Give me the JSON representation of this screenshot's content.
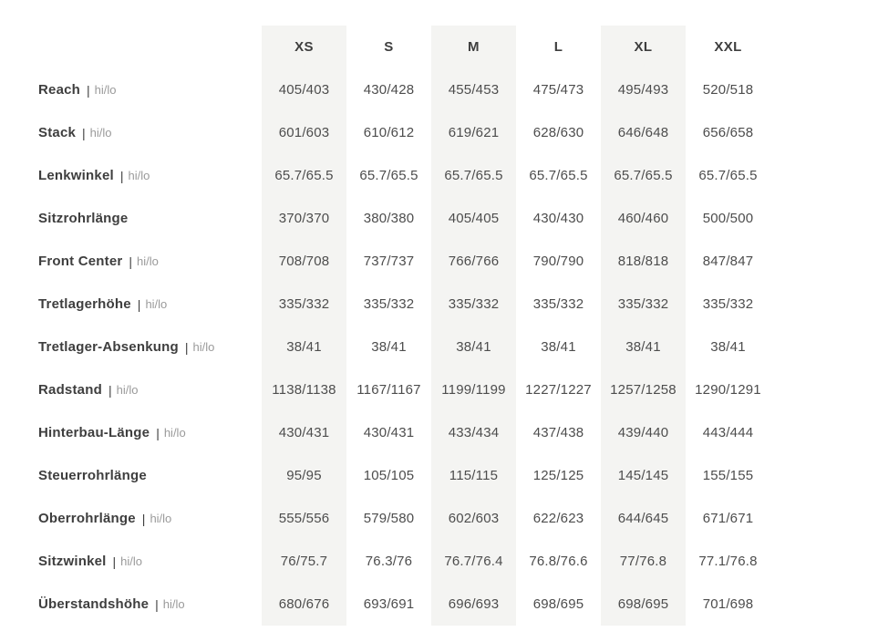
{
  "table": {
    "separator": "|",
    "columns": [
      "XS",
      "S",
      "M",
      "L",
      "XL",
      "XXL"
    ],
    "shaded_columns": [
      "XS",
      "M",
      "XL"
    ],
    "colors": {
      "band": "#f4f4f2",
      "label": "#3e3e3e",
      "suffix": "#9a9a9a",
      "value": "#4d4d4d",
      "background": "#ffffff"
    },
    "rows": [
      {
        "label": "Reach",
        "suffix": "hi/lo",
        "values": [
          "405/403",
          "430/428",
          "455/453",
          "475/473",
          "495/493",
          "520/518"
        ]
      },
      {
        "label": "Stack",
        "suffix": "hi/lo",
        "values": [
          "601/603",
          "610/612",
          "619/621",
          "628/630",
          "646/648",
          "656/658"
        ]
      },
      {
        "label": "Lenkwinkel",
        "suffix": "hi/lo",
        "values": [
          "65.7/65.5",
          "65.7/65.5",
          "65.7/65.5",
          "65.7/65.5",
          "65.7/65.5",
          "65.7/65.5"
        ]
      },
      {
        "label": "Sitzrohrlänge",
        "suffix": "",
        "values": [
          "370/370",
          "380/380",
          "405/405",
          "430/430",
          "460/460",
          "500/500"
        ]
      },
      {
        "label": "Front Center",
        "suffix": "hi/lo",
        "values": [
          "708/708",
          "737/737",
          "766/766",
          "790/790",
          "818/818",
          "847/847"
        ]
      },
      {
        "label": "Tretlagerhöhe",
        "suffix": "hi/lo",
        "values": [
          "335/332",
          "335/332",
          "335/332",
          "335/332",
          "335/332",
          "335/332"
        ]
      },
      {
        "label": "Tretlager-Absenkung",
        "suffix": "hi/lo",
        "values": [
          "38/41",
          "38/41",
          "38/41",
          "38/41",
          "38/41",
          "38/41"
        ]
      },
      {
        "label": "Radstand",
        "suffix": "hi/lo",
        "values": [
          "1138/1138",
          "1167/1167",
          "1199/1199",
          "1227/1227",
          "1257/1258",
          "1290/1291"
        ]
      },
      {
        "label": "Hinterbau-Länge",
        "suffix": "hi/lo",
        "values": [
          "430/431",
          "430/431",
          "433/434",
          "437/438",
          "439/440",
          "443/444"
        ]
      },
      {
        "label": "Steuerrohrlänge",
        "suffix": "",
        "values": [
          "95/95",
          "105/105",
          "115/115",
          "125/125",
          "145/145",
          "155/155"
        ]
      },
      {
        "label": "Oberrohrlänge",
        "suffix": "hi/lo",
        "values": [
          "555/556",
          "579/580",
          "602/603",
          "622/623",
          "644/645",
          "671/671"
        ]
      },
      {
        "label": "Sitzwinkel",
        "suffix": "hi/lo",
        "values": [
          "76/75.7",
          "76.3/76",
          "76.7/76.4",
          "76.8/76.6",
          "77/76.8",
          "77.1/76.8"
        ]
      },
      {
        "label": "Überstandshöhe",
        "suffix": "hi/lo",
        "values": [
          "680/676",
          "693/691",
          "696/693",
          "698/695",
          "698/695",
          "701/698"
        ]
      }
    ]
  }
}
